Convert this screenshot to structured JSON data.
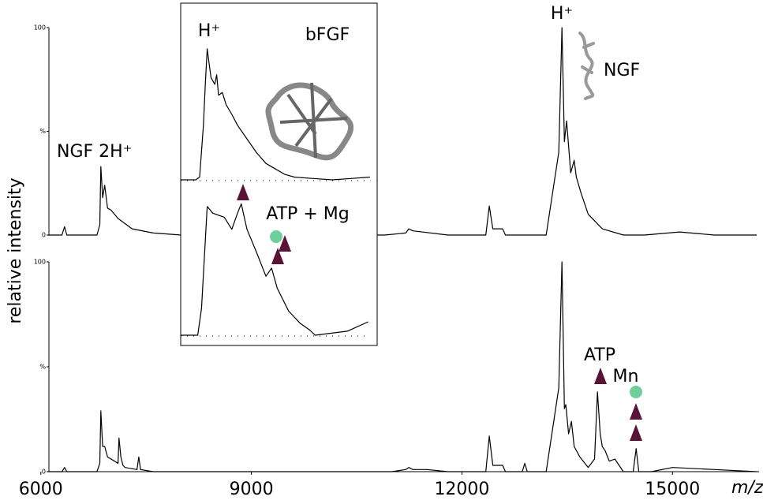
{
  "chart_data": [
    {
      "type": "line",
      "ylabel": "relative intensity",
      "x": [
        6100,
        6300,
        6337,
        6370,
        6800,
        6840,
        6855,
        6880,
        6910,
        6950,
        7000,
        7100,
        7300,
        7600,
        8000,
        10500,
        10900,
        11200,
        11243,
        11300,
        11800,
        12340,
        12390,
        12440,
        12580,
        12620,
        13200,
        13380,
        13425,
        13460,
        13492,
        13550,
        13600,
        13630,
        13700,
        13800,
        14000,
        14300,
        14600,
        15100,
        15600,
        16200
      ],
      "values": [
        0,
        0,
        4,
        0,
        0,
        5,
        33,
        18,
        24,
        13,
        12,
        8,
        3,
        1,
        0,
        0,
        0,
        1,
        3,
        2,
        0,
        0,
        14,
        3,
        3,
        0,
        0,
        40,
        100,
        45,
        55,
        30,
        36,
        28,
        20,
        10,
        3,
        0,
        0,
        1.5,
        0,
        0
      ],
      "color": "#000000",
      "xlim": [
        5890,
        16200
      ],
      "ylim": [
        0,
        100
      ],
      "yticks": [
        0,
        {
          "value": 50,
          "label": "%"
        },
        100
      ],
      "annotations": [
        "NGF 2H⁺",
        "H⁺",
        "NGF"
      ]
    },
    {
      "type": "line",
      "xlabel": "m/z",
      "x": [
        6100,
        6300,
        6337,
        6370,
        6800,
        6840,
        6855,
        6880,
        6910,
        6950,
        7050,
        7100,
        7113,
        7140,
        7170,
        7200,
        7370,
        7395,
        7420,
        7600,
        11000,
        11200,
        11243,
        11300,
        11500,
        11800,
        12340,
        12390,
        12440,
        12580,
        12620,
        12860,
        12896,
        12930,
        13200,
        13380,
        13425,
        13460,
        13480,
        13520,
        13560,
        13600,
        13680,
        13800,
        13890,
        13931,
        13970,
        14000,
        14040,
        14100,
        14180,
        14300,
        14440,
        14482,
        14520,
        14700,
        15000,
        15600,
        16200
      ],
      "values": [
        0,
        0,
        2,
        0,
        0,
        4,
        29,
        12,
        12,
        7,
        5,
        4,
        16,
        7,
        3,
        2,
        1,
        7,
        1,
        0,
        0,
        1,
        2,
        1,
        1,
        0,
        0,
        17,
        3,
        3,
        0,
        0,
        4,
        0,
        0,
        40,
        100,
        30,
        32,
        18,
        24,
        12,
        7,
        2,
        6,
        38,
        18,
        12,
        10,
        5,
        6,
        0,
        0,
        11,
        0,
        0,
        2,
        1,
        0
      ],
      "color": "#000000",
      "xlim": [
        5890,
        16200
      ],
      "ylim": [
        0,
        100
      ],
      "xticks": [
        6000,
        9000,
        12000,
        15000
      ],
      "yticks": [
        0,
        {
          "value": 50,
          "label": "%"
        },
        100
      ],
      "annotations": [
        "ATP",
        "Mn"
      ]
    },
    {
      "type": "line",
      "x": [
        0,
        8,
        10,
        12,
        13,
        14,
        16,
        18,
        19,
        20,
        22,
        24,
        27,
        30,
        35,
        40,
        45,
        50,
        55,
        60,
        70,
        80,
        90,
        100
      ],
      "values": [
        0,
        0,
        2,
        40,
        70,
        96,
        75,
        70,
        77,
        62,
        64,
        55,
        48,
        40,
        30,
        20,
        12,
        8,
        4,
        2,
        1,
        0,
        1,
        2
      ],
      "color": "#000000",
      "xlim": [
        0,
        100
      ],
      "ylim": [
        0,
        100
      ],
      "annotations": [
        "H⁺",
        "bFGF"
      ]
    },
    {
      "type": "line",
      "x": [
        0,
        9,
        11,
        14,
        17,
        23,
        27,
        30,
        32,
        35,
        40,
        45,
        48,
        51,
        57,
        63,
        68,
        71,
        88,
        99
      ],
      "values": [
        0,
        0,
        20,
        96,
        91,
        88,
        79,
        91,
        98,
        79,
        62,
        44,
        50,
        35,
        18,
        9,
        4,
        0,
        3,
        10
      ],
      "color": "#000000",
      "xlim": [
        0,
        100
      ],
      "ylim": [
        0,
        100
      ],
      "annotations": [
        "ATP + Mg"
      ]
    }
  ]
}
